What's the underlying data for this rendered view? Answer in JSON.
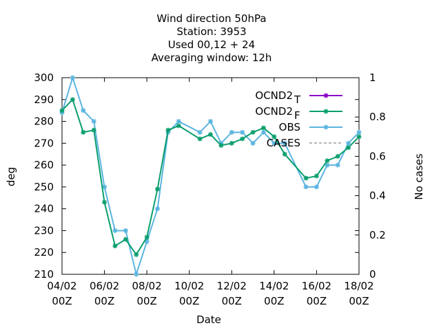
{
  "chart_data": {
    "type": "line",
    "title_lines": [
      "Wind direction 50hPa",
      "Station:      3953",
      "Used  00,12  + 24",
      "Averaging window: 12h"
    ],
    "xlabel": "Date",
    "ylabel": "deg",
    "y2label": "No cases",
    "ylim": [
      210,
      300
    ],
    "y_ticks": [
      210,
      220,
      230,
      240,
      250,
      260,
      270,
      280,
      290,
      300
    ],
    "y2lim": [
      0,
      1
    ],
    "y2_ticks": [
      0,
      0.2,
      0.4,
      0.6,
      0.8,
      1
    ],
    "xlim": [
      "2024-02-04 00:00",
      "2024-02-18 00:00"
    ],
    "x_ticks": [
      {
        "line1": "04/02",
        "line2": "00Z",
        "day": 4
      },
      {
        "line1": "06/02",
        "line2": "00Z",
        "day": 6
      },
      {
        "line1": "08/02",
        "line2": "00Z",
        "day": 8
      },
      {
        "line1": "10/02",
        "line2": "00Z",
        "day": 10
      },
      {
        "line1": "12/02",
        "line2": "00Z",
        "day": 12
      },
      {
        "line1": "14/02",
        "line2": "00Z",
        "day": 14
      },
      {
        "line1": "16/02",
        "line2": "00Z",
        "day": 16
      },
      {
        "line1": "18/02",
        "line2": "00Z",
        "day": 18
      }
    ],
    "grid": false,
    "legend_position": "top-right",
    "series": [
      {
        "name": "OCND2",
        "subscript": "T",
        "color": "#8b00c8",
        "marker": "star",
        "points": []
      },
      {
        "name": "OCND2",
        "subscript": "F",
        "color": "#0a9e6e",
        "marker": "star",
        "points": [
          [
            4.0,
            285
          ],
          [
            4.5,
            290
          ],
          [
            5.0,
            275
          ],
          [
            5.5,
            276
          ],
          [
            6.0,
            243
          ],
          [
            6.5,
            223
          ],
          [
            7.0,
            226
          ],
          [
            7.5,
            219
          ],
          [
            8.0,
            227
          ],
          [
            8.5,
            249
          ],
          [
            9.0,
            276
          ],
          [
            9.5,
            278
          ],
          [
            10.5,
            272
          ],
          [
            11.0,
            274
          ],
          [
            11.5,
            269
          ],
          [
            12.0,
            270
          ],
          [
            12.5,
            272
          ],
          [
            13.0,
            275
          ],
          [
            13.5,
            277
          ],
          [
            14.0,
            273
          ],
          [
            14.5,
            265
          ],
          [
            15.5,
            254
          ],
          [
            16.0,
            255
          ],
          [
            16.5,
            262
          ],
          [
            17.0,
            264
          ],
          [
            17.5,
            268
          ],
          [
            18.0,
            273
          ]
        ]
      },
      {
        "name": "OBS",
        "color": "#5ab4e0",
        "marker": "star",
        "points": [
          [
            4.0,
            284
          ],
          [
            4.5,
            300
          ],
          [
            5.0,
            285
          ],
          [
            5.5,
            280
          ],
          [
            6.0,
            250
          ],
          [
            6.5,
            230
          ],
          [
            7.0,
            230
          ],
          [
            7.5,
            210
          ],
          [
            8.0,
            225
          ],
          [
            8.5,
            240
          ],
          [
            9.0,
            275
          ],
          [
            9.5,
            280
          ],
          [
            10.5,
            275
          ],
          [
            11.0,
            280
          ],
          [
            11.5,
            270
          ],
          [
            12.0,
            275
          ],
          [
            12.5,
            275
          ],
          [
            13.0,
            270
          ],
          [
            13.5,
            275
          ],
          [
            14.0,
            270
          ],
          [
            14.5,
            270
          ],
          [
            15.5,
            250
          ],
          [
            16.0,
            250
          ],
          [
            16.5,
            260
          ],
          [
            17.0,
            260
          ],
          [
            17.5,
            270
          ],
          [
            18.0,
            275
          ]
        ]
      },
      {
        "name": "CASES",
        "color": "#888888",
        "dash": true,
        "points": []
      }
    ]
  }
}
